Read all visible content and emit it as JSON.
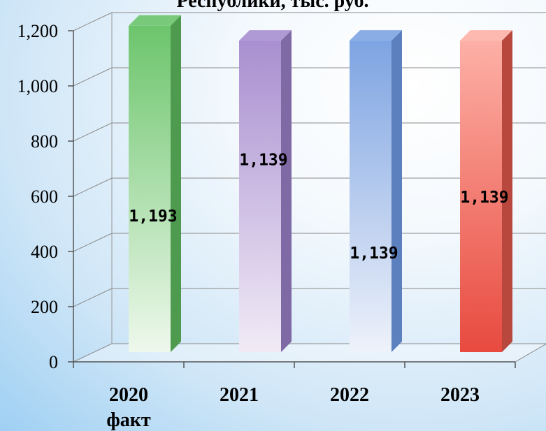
{
  "chart_data": {
    "type": "bar",
    "title": "Республики, тыс. руб.",
    "categories": [
      {
        "line1": "2020",
        "line2": "факт"
      },
      {
        "line1": "2021",
        "line2": ""
      },
      {
        "line1": "2022",
        "line2": ""
      },
      {
        "line1": "2023",
        "line2": ""
      }
    ],
    "values": [
      1193,
      1139,
      1139,
      1139
    ],
    "data_labels": [
      "1,193",
      "1,139",
      "1,139",
      "1,139"
    ],
    "y_ticks": [
      "0",
      "200",
      "400",
      "600",
      "800",
      "1,000",
      "1,200"
    ],
    "ylim": [
      0,
      1200
    ],
    "grid": true,
    "bar_colors": [
      {
        "top": "#6cc56c",
        "bottom": "#eef8ec",
        "side": "#4e9a4e"
      },
      {
        "top": "#a98fd0",
        "bottom": "#f1ebf6",
        "side": "#7f6aa6"
      },
      {
        "top": "#7ea4e2",
        "bottom": "#eef2fa",
        "side": "#5c7fbd"
      },
      {
        "top": "#fdb0a6",
        "bottom": "#e84a3f",
        "side": "#b8473d"
      }
    ]
  }
}
